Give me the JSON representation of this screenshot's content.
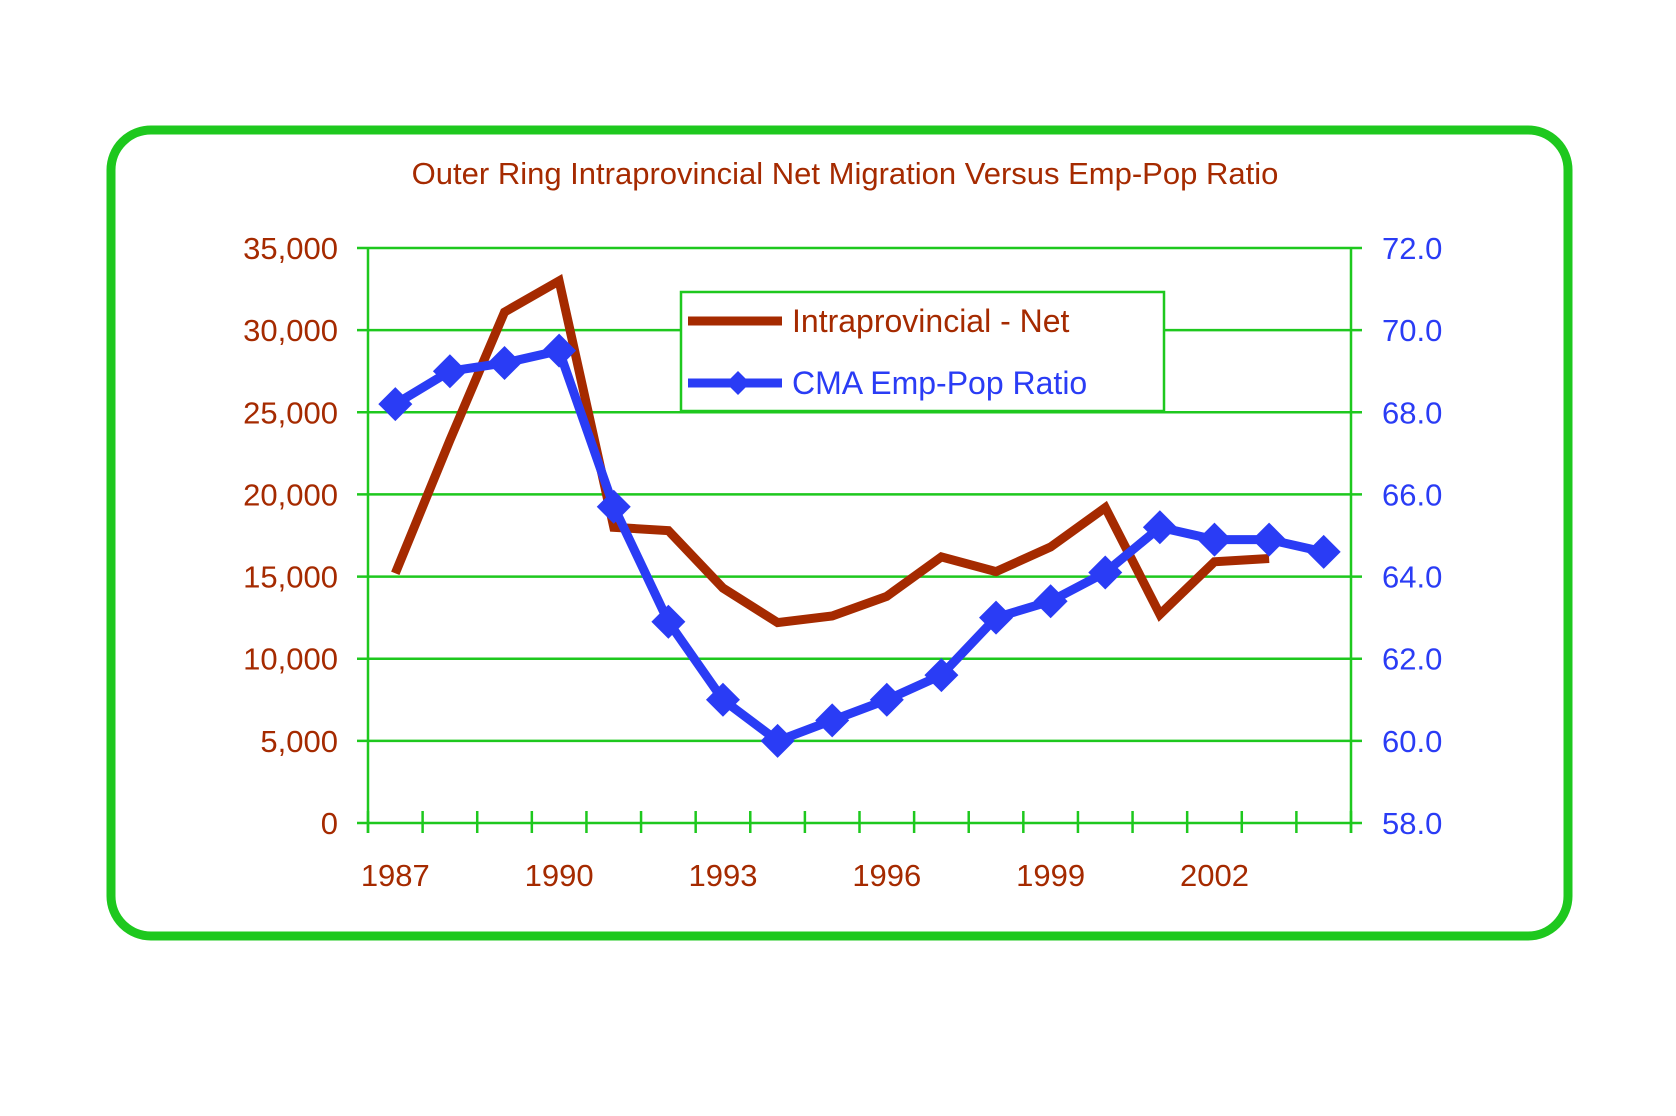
{
  "chart_data": {
    "type": "line",
    "title": "Outer Ring Intraprovincial Net Migration Versus Emp-Pop Ratio",
    "xlabel": "",
    "ylabel": "",
    "y2label": "",
    "x": [
      "1987",
      "1988",
      "1989",
      "1990",
      "1991",
      "1992",
      "1993",
      "1994",
      "1995",
      "1996",
      "1997",
      "1998",
      "1999",
      "2000",
      "2001",
      "2002",
      "2003",
      "2004"
    ],
    "x_tick_labels": [
      "1987",
      "1990",
      "1993",
      "1996",
      "1999",
      "2002"
    ],
    "ylim": [
      0,
      35000
    ],
    "y_ticks": [
      0,
      5000,
      10000,
      15000,
      20000,
      25000,
      30000,
      35000
    ],
    "y_tick_labels": [
      "0",
      "5,000",
      "10,000",
      "15,000",
      "20,000",
      "25,000",
      "30,000",
      "35,000"
    ],
    "y2lim": [
      58.0,
      72.0
    ],
    "y2_ticks": [
      58,
      60,
      62,
      64,
      66,
      68,
      70,
      72
    ],
    "y2_tick_labels": [
      "58.0",
      "60.0",
      "62.0",
      "64.0",
      "66.0",
      "68.0",
      "70.0",
      "72.0"
    ],
    "grid": true,
    "legend_position": "top-center",
    "series": [
      {
        "name": "Intraprovincial - Net",
        "axis": "left",
        "color": "#a52a00",
        "marker": "none",
        "values": [
          15200,
          23300,
          31100,
          33000,
          18000,
          17800,
          14300,
          12200,
          12600,
          13800,
          16200,
          15300,
          16800,
          19200,
          12700,
          15900,
          16100,
          null
        ]
      },
      {
        "name": "CMA Emp-Pop Ratio",
        "axis": "right",
        "color": "#2a3cf5",
        "marker": "diamond",
        "values": [
          68.2,
          69.0,
          69.2,
          69.5,
          65.7,
          62.9,
          61.0,
          60.0,
          60.5,
          61.0,
          61.6,
          63.0,
          63.4,
          64.1,
          65.2,
          64.9,
          64.9,
          64.6
        ]
      }
    ]
  },
  "colors": {
    "frame": "#1ec81e",
    "grid": "#1ec81e",
    "left_axis_text": "#a52a00",
    "right_axis_text": "#2a3cf5"
  }
}
